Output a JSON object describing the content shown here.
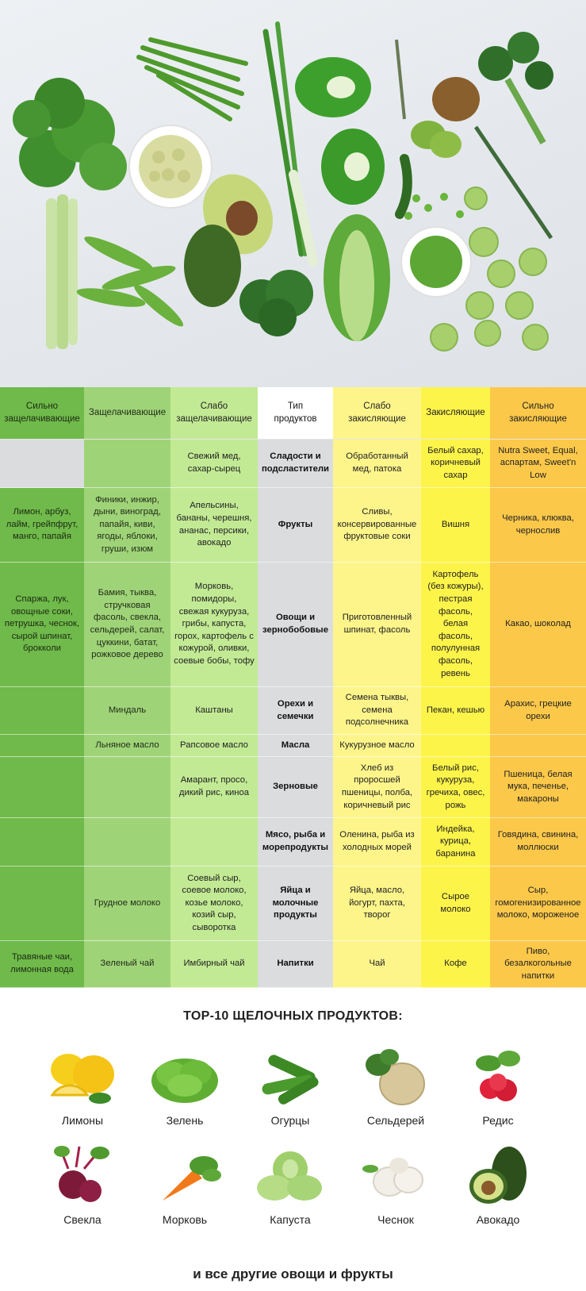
{
  "hero": {
    "icon": "green-vegetables-photo"
  },
  "table": {
    "headers": [
      "Сильно\nзащелачивающие",
      "Защелачивающие",
      "Слабо\nзащелачивающие",
      "Тип\nпродуктов",
      "Слабо\nзакисляющие",
      "Закисляющие",
      "Сильно\nзакисляющие"
    ],
    "rows": [
      {
        "cells": [
          "",
          "",
          "Свежий мед,\nсахар-сырец",
          "Сладости и\nподсластители",
          "Обработанный\nмед, патока",
          "Белый сахар,\nкоричневый\nсахар",
          "Nutra Sweet, Equal,\nаспартам, Sweet'n\nLow"
        ]
      },
      {
        "cells": [
          "Лимон, арбуз,\nлайм, грейпфрут,\nманго, папайя",
          "Финики, инжир,\nдыни, виноград,\nпапайя, киви,\nягоды, яблоки,\nгруши, изюм",
          "Апельсины,\nбананы, черешня,\nананас, персики,\nавокадо",
          "Фрукты",
          "Сливы,\nконсервированные\nфруктовые соки",
          "Вишня",
          "Черника, клюква,\nчернослив"
        ]
      },
      {
        "cells": [
          "Спаржа, лук,\nовощные соки,\nпетрушка, чеснок,\nсырой шпинат,\nброкколи",
          "Бамия, тыква,\nстручковая\nфасоль, свекла,\nсельдерей, салат,\nцуккини, батат,\nрожковое дерево",
          "Морковь,\nпомидоры,\nсвежая кукуруза,\nгрибы, капуста,\nгорох, картофель с\nкожурой, оливки,\nсоевые бобы, тофу",
          "Овощи и\nзернобобовые",
          "Приготовленный\nшпинат, фасоль",
          "Картофель\n(без кожуры),\nпестрая\nфасоль,\nбелая\nфасоль,\nполулунная\nфасоль,\nревень",
          "Какао, шоколад"
        ]
      },
      {
        "cells": [
          "",
          "Миндаль",
          "Каштаны",
          "Орехи и\nсемечки",
          "Семена тыквы,\nсемена\nподсолнечника",
          "Пекан, кешью",
          "Арахис, грецкие\nорехи"
        ]
      },
      {
        "cells": [
          "",
          "Льняное масло",
          "Рапсовое масло",
          "Масла",
          "Кукурузное масло",
          "",
          ""
        ]
      },
      {
        "cells": [
          "",
          "",
          "Амарант, просо,\nдикий рис, киноа",
          "Зерновые",
          "Хлеб из\nпроросшей\nпшеницы, полба,\nкоричневый рис",
          "Белый рис,\nкукуруза,\nгречиха, овес,\nрожь",
          "Пшеница, белая\nмука, печенье,\nмакароны"
        ]
      },
      {
        "cells": [
          "",
          "",
          "",
          "Мясо, рыба и\nморепродукты",
          "Оленина, рыба из\nхолодных морей",
          "Индейка,\nкурица,\nбаранина",
          "Говядина, свинина,\nмоллюски"
        ]
      },
      {
        "cells": [
          "",
          "Грудное молоко",
          "Соевый сыр,\nсоевое молоко,\nкозье молоко,\nкозий сыр,\nсыворотка",
          "Яйца и\nмолочные\nпродукты",
          "Яйца, масло,\nйогурт, пахта,\nтворог",
          "Сырое\nмолоко",
          "Сыр,\nгомогенизированное\nмолоко, мороженое"
        ]
      },
      {
        "cells": [
          "Травяные чаи,\nлимонная вода",
          "Зеленый чай",
          "Имбирный чай",
          "Напитки",
          "Чай",
          "Кофе",
          "Пиво,\nбезалкогольные\nнапитки"
        ]
      }
    ]
  },
  "top_title": "TOP-10 ЩЕЛОЧНЫХ ПРОДУКТОВ:",
  "foods": [
    {
      "label": "Лимоны",
      "icon": "lemon-icon"
    },
    {
      "label": "Зелень",
      "icon": "lettuce-icon"
    },
    {
      "label": "Огурцы",
      "icon": "cucumber-icon"
    },
    {
      "label": "Сельдерей",
      "icon": "celery-root-icon"
    },
    {
      "label": "Редис",
      "icon": "radish-icon"
    },
    {
      "label": "Свекла",
      "icon": "beet-icon"
    },
    {
      "label": "Морковь",
      "icon": "carrot-icon"
    },
    {
      "label": "Капуста",
      "icon": "cabbage-icon"
    },
    {
      "label": "Чеснок",
      "icon": "garlic-icon"
    },
    {
      "label": "Авокадо",
      "icon": "avocado-icon"
    }
  ],
  "footer": "и все другие овощи и фрукты"
}
